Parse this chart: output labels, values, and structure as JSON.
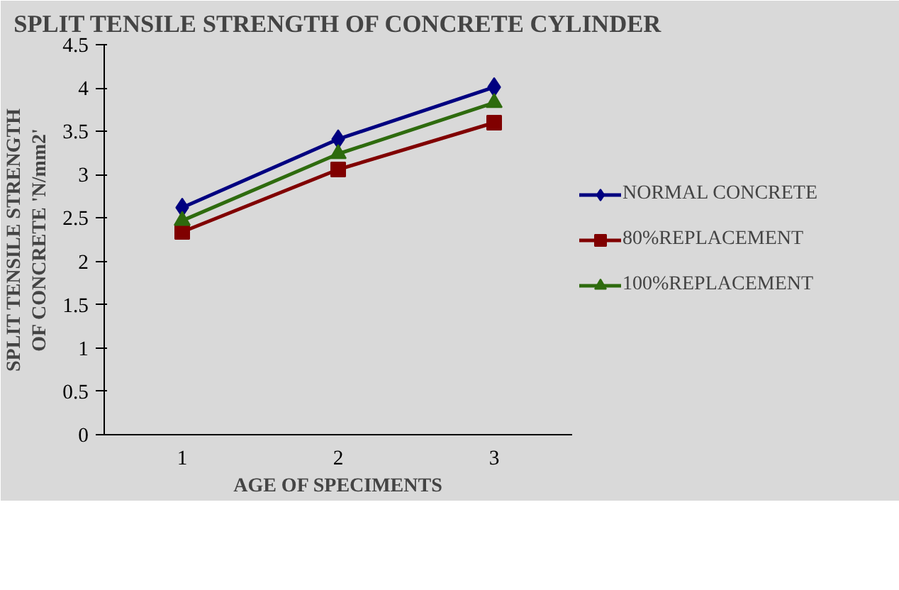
{
  "chart_data": {
    "type": "line",
    "title": "SPLIT TENSILE STRENGTH OF CONCRETE CYLINDER",
    "xlabel": "AGE OF SPECIMENTS",
    "ylabel": "SPLIT TENSILE STRENGTH OF CONCRETE 'N/mm2'",
    "categories": [
      "1",
      "2",
      "3"
    ],
    "series": [
      {
        "name": "NORMAL CONCRETE",
        "color": "#000080",
        "marker": "diamond",
        "values": [
          2.62,
          3.41,
          4.01
        ]
      },
      {
        "name": "80%REPLACEMENT",
        "color": "#800000",
        "marker": "square",
        "values": [
          2.34,
          3.06,
          3.6
        ]
      },
      {
        "name": "100%REPLACEMENT",
        "color": "#2e6b0e",
        "marker": "triangle",
        "values": [
          2.47,
          3.24,
          3.83
        ]
      }
    ],
    "ylim": [
      0,
      4.5
    ],
    "yticks": [
      0,
      0.5,
      1,
      1.5,
      2,
      2.5,
      3,
      3.5,
      4,
      4.5
    ],
    "grid": false,
    "legend": "right",
    "line_style": "solid"
  }
}
